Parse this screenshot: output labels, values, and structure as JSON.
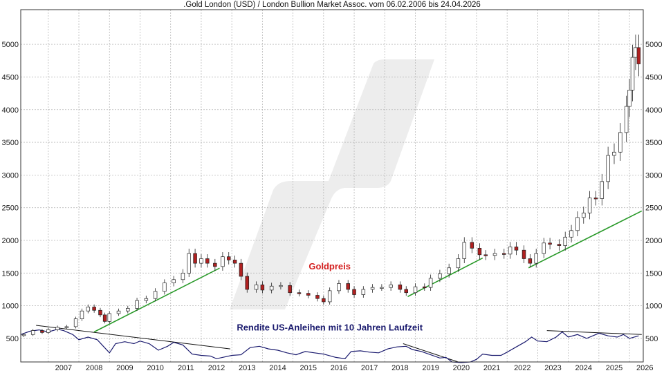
{
  "chart_data": {
    "type": "candlestick",
    "title": ".Gold London (USD) / London Bullion Market Assoc. vom 06.02.2006 bis 24.04.2026",
    "xlabel": "",
    "ylabel": "",
    "xlim": [
      2006.1,
      2026.45
    ],
    "ylim": [
      140,
      5530
    ],
    "x_ticks": [
      "2007",
      "2008",
      "2009",
      "2010",
      "2011",
      "2012",
      "2013",
      "2014",
      "2015",
      "2016",
      "2017",
      "2018",
      "2019",
      "2020",
      "2021",
      "2022",
      "2023",
      "2024",
      "2025",
      "2026"
    ],
    "y_ticks": [
      500,
      1000,
      1500,
      2000,
      2500,
      3000,
      3500,
      4000,
      4500,
      5000
    ],
    "grid": true,
    "annotations": [
      {
        "text": "Goldpreis",
        "x": 2016.2,
        "y": 1555,
        "color": "#d42020"
      },
      {
        "text": "Rendite US-Anleihen mit 10 Jahren Laufzeit",
        "x": 2016.2,
        "y": 620,
        "color": "#1a1a6e"
      }
    ],
    "series": [
      {
        "name": "Goldpreis",
        "kind": "candle",
        "color_up": "#ffffff",
        "color_down": "#b02020",
        "points": [
          [
            2006.2,
            560
          ],
          [
            2006.5,
            620
          ],
          [
            2006.8,
            590
          ],
          [
            2007.0,
            635
          ],
          [
            2007.3,
            670
          ],
          [
            2007.6,
            680
          ],
          [
            2007.9,
            800
          ],
          [
            2008.1,
            920
          ],
          [
            2008.3,
            980
          ],
          [
            2008.5,
            930
          ],
          [
            2008.7,
            860
          ],
          [
            2008.85,
            760
          ],
          [
            2009.0,
            880
          ],
          [
            2009.3,
            920
          ],
          [
            2009.6,
            960
          ],
          [
            2009.9,
            1080
          ],
          [
            2010.2,
            1110
          ],
          [
            2010.5,
            1220
          ],
          [
            2010.8,
            1350
          ],
          [
            2011.1,
            1400
          ],
          [
            2011.4,
            1500
          ],
          [
            2011.6,
            1800
          ],
          [
            2011.8,
            1650
          ],
          [
            2012.0,
            1720
          ],
          [
            2012.2,
            1650
          ],
          [
            2012.45,
            1600
          ],
          [
            2012.7,
            1750
          ],
          [
            2012.9,
            1700
          ],
          [
            2013.1,
            1650
          ],
          [
            2013.3,
            1450
          ],
          [
            2013.5,
            1250
          ],
          [
            2013.8,
            1320
          ],
          [
            2014.0,
            1240
          ],
          [
            2014.3,
            1300
          ],
          [
            2014.6,
            1310
          ],
          [
            2014.9,
            1200
          ],
          [
            2015.2,
            1190
          ],
          [
            2015.5,
            1160
          ],
          [
            2015.8,
            1110
          ],
          [
            2016.0,
            1060
          ],
          [
            2016.2,
            1230
          ],
          [
            2016.5,
            1340
          ],
          [
            2016.8,
            1250
          ],
          [
            2017.0,
            1170
          ],
          [
            2017.3,
            1250
          ],
          [
            2017.6,
            1280
          ],
          [
            2017.9,
            1280
          ],
          [
            2018.2,
            1320
          ],
          [
            2018.5,
            1250
          ],
          [
            2018.7,
            1200
          ],
          [
            2019.0,
            1290
          ],
          [
            2019.3,
            1280
          ],
          [
            2019.5,
            1420
          ],
          [
            2019.8,
            1490
          ],
          [
            2020.1,
            1580
          ],
          [
            2020.4,
            1720
          ],
          [
            2020.6,
            1970
          ],
          [
            2020.85,
            1880
          ],
          [
            2021.1,
            1780
          ],
          [
            2021.3,
            1770
          ],
          [
            2021.6,
            1800
          ],
          [
            2021.9,
            1790
          ],
          [
            2022.1,
            1900
          ],
          [
            2022.3,
            1850
          ],
          [
            2022.55,
            1720
          ],
          [
            2022.75,
            1650
          ],
          [
            2022.95,
            1800
          ],
          [
            2023.2,
            1960
          ],
          [
            2023.4,
            1940
          ],
          [
            2023.7,
            1920
          ],
          [
            2023.9,
            2050
          ],
          [
            2024.1,
            2150
          ],
          [
            2024.3,
            2350
          ],
          [
            2024.5,
            2420
          ],
          [
            2024.7,
            2650
          ],
          [
            2024.9,
            2640
          ],
          [
            2025.1,
            2900
          ],
          [
            2025.3,
            3300
          ],
          [
            2025.5,
            3350
          ],
          [
            2025.7,
            3650
          ],
          [
            2025.9,
            4050
          ],
          [
            2026.0,
            4300
          ],
          [
            2026.1,
            4800
          ],
          [
            2026.2,
            4950
          ],
          [
            2026.3,
            4700
          ]
        ]
      },
      {
        "name": "Rendite US-Anleihen mit 10 Jahren Laufzeit",
        "kind": "line",
        "color": "#1a1a6e",
        "points": [
          [
            2006.1,
            560
          ],
          [
            2006.4,
            610
          ],
          [
            2006.7,
            630
          ],
          [
            2007.0,
            600
          ],
          [
            2007.3,
            640
          ],
          [
            2007.5,
            620
          ],
          [
            2007.8,
            560
          ],
          [
            2008.0,
            480
          ],
          [
            2008.3,
            520
          ],
          [
            2008.6,
            480
          ],
          [
            2008.8,
            380
          ],
          [
            2009.0,
            280
          ],
          [
            2009.2,
            420
          ],
          [
            2009.5,
            450
          ],
          [
            2009.8,
            420
          ],
          [
            2010.0,
            460
          ],
          [
            2010.3,
            420
          ],
          [
            2010.6,
            320
          ],
          [
            2010.9,
            380
          ],
          [
            2011.1,
            440
          ],
          [
            2011.4,
            400
          ],
          [
            2011.7,
            260
          ],
          [
            2012.0,
            240
          ],
          [
            2012.3,
            230
          ],
          [
            2012.5,
            190
          ],
          [
            2012.8,
            220
          ],
          [
            2013.0,
            240
          ],
          [
            2013.3,
            250
          ],
          [
            2013.6,
            360
          ],
          [
            2013.9,
            380
          ],
          [
            2014.2,
            340
          ],
          [
            2014.5,
            320
          ],
          [
            2014.8,
            280
          ],
          [
            2015.1,
            250
          ],
          [
            2015.4,
            300
          ],
          [
            2015.7,
            280
          ],
          [
            2016.0,
            260
          ],
          [
            2016.4,
            210
          ],
          [
            2016.7,
            190
          ],
          [
            2016.9,
            300
          ],
          [
            2017.2,
            310
          ],
          [
            2017.5,
            290
          ],
          [
            2017.8,
            280
          ],
          [
            2018.1,
            340
          ],
          [
            2018.4,
            370
          ],
          [
            2018.7,
            380
          ],
          [
            2018.9,
            330
          ],
          [
            2019.2,
            300
          ],
          [
            2019.5,
            250
          ],
          [
            2019.8,
            200
          ],
          [
            2020.0,
            210
          ],
          [
            2020.2,
            140
          ],
          [
            2020.5,
            130
          ],
          [
            2020.8,
            140
          ],
          [
            2021.0,
            180
          ],
          [
            2021.2,
            260
          ],
          [
            2021.5,
            240
          ],
          [
            2021.8,
            240
          ],
          [
            2022.0,
            290
          ],
          [
            2022.3,
            370
          ],
          [
            2022.6,
            450
          ],
          [
            2022.8,
            520
          ],
          [
            2023.0,
            460
          ],
          [
            2023.3,
            450
          ],
          [
            2023.6,
            520
          ],
          [
            2023.8,
            600
          ],
          [
            2024.0,
            520
          ],
          [
            2024.3,
            560
          ],
          [
            2024.6,
            500
          ],
          [
            2024.8,
            540
          ],
          [
            2025.0,
            580
          ],
          [
            2025.3,
            540
          ],
          [
            2025.6,
            520
          ],
          [
            2025.8,
            560
          ],
          [
            2026.0,
            500
          ],
          [
            2026.3,
            540
          ]
        ]
      }
    ],
    "trendlines": {
      "gold_color": "#2a9a2a",
      "yield_color": "#111111",
      "gold": [
        [
          [
            2008.5,
            600
          ],
          [
            2012.6,
            1575
          ]
        ],
        [
          [
            2018.75,
            1140
          ],
          [
            2021.2,
            1730
          ]
        ],
        [
          [
            2022.7,
            1580
          ],
          [
            2026.4,
            2450
          ]
        ]
      ],
      "yield": [
        [
          [
            2006.6,
            700
          ],
          [
            2012.95,
            340
          ]
        ],
        [
          [
            2018.6,
            420
          ],
          [
            2020.4,
            140
          ]
        ],
        [
          [
            2023.3,
            620
          ],
          [
            2026.4,
            560
          ]
        ]
      ]
    }
  }
}
